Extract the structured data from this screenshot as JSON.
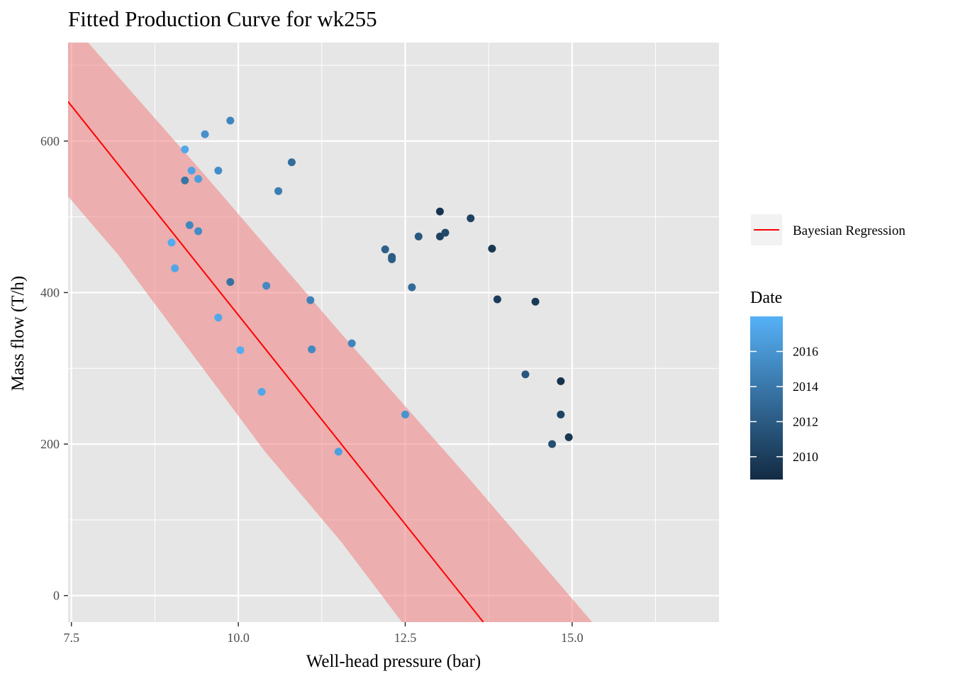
{
  "chart_data": {
    "type": "scatter",
    "title": "Fitted Production Curve for wk255",
    "xlabel": "Well-head pressure (bar)",
    "ylabel": "Mass flow (T/h)",
    "xlim": [
      7.45,
      17.2
    ],
    "ylim": [
      -35,
      730
    ],
    "x_ticks": [
      7.5,
      10.0,
      12.5,
      15.0
    ],
    "x_tick_labels": [
      "7.5",
      "10.0",
      "12.5",
      "15.0"
    ],
    "x_minor_ticks": [
      8.75,
      11.25,
      13.75,
      16.25
    ],
    "y_ticks": [
      0,
      200,
      400,
      600
    ],
    "y_tick_labels": [
      "0",
      "200",
      "400",
      "600"
    ],
    "y_minor_ticks": [
      100,
      300,
      500,
      700
    ],
    "grid": true,
    "panel_background": "#e6e6e6",
    "fit_line": {
      "name": "Bayesian Regression",
      "color": "#ff0000",
      "points": [
        [
          7.45,
          652
        ],
        [
          13.67,
          -35
        ]
      ]
    },
    "credible_band": {
      "color": "#f08080",
      "opacity": 0.55,
      "upper": [
        [
          7.45,
          730
        ],
        [
          7.75,
          730
        ],
        [
          9.5,
          555
        ],
        [
          11.5,
          350
        ],
        [
          13.5,
          150
        ],
        [
          15.3,
          -35
        ]
      ],
      "lower": [
        [
          7.45,
          527
        ],
        [
          8.2,
          450
        ],
        [
          10.4,
          190
        ],
        [
          11.55,
          70
        ],
        [
          12.45,
          -35
        ]
      ]
    },
    "legend": {
      "position": "right",
      "line_label": "Bayesian Regression",
      "color_title": "Date",
      "color_ticks": [
        2010,
        2012,
        2014,
        2016
      ],
      "color_tick_labels": [
        "2010",
        "2012",
        "2014",
        "2016"
      ],
      "color_range": [
        2008.7,
        2018.0
      ],
      "low_color": "#132b43",
      "high_color": "#56b1f7"
    },
    "points": [
      {
        "x": 9.2,
        "y": 589,
        "date": 2017.3
      },
      {
        "x": 9.5,
        "y": 609,
        "date": 2015.8
      },
      {
        "x": 9.88,
        "y": 627,
        "date": 2015.0
      },
      {
        "x": 9.3,
        "y": 561,
        "date": 2016.9
      },
      {
        "x": 9.4,
        "y": 550,
        "date": 2016.6
      },
      {
        "x": 9.7,
        "y": 561,
        "date": 2015.5
      },
      {
        "x": 9.2,
        "y": 548,
        "date": 2013.8
      },
      {
        "x": 10.8,
        "y": 572,
        "date": 2013.3
      },
      {
        "x": 10.6,
        "y": 534,
        "date": 2014.4
      },
      {
        "x": 9.27,
        "y": 489,
        "date": 2015.1
      },
      {
        "x": 9.4,
        "y": 481,
        "date": 2015.4
      },
      {
        "x": 9.0,
        "y": 466,
        "date": 2017.6
      },
      {
        "x": 9.05,
        "y": 432,
        "date": 2017.2
      },
      {
        "x": 9.88,
        "y": 414,
        "date": 2013.6
      },
      {
        "x": 10.42,
        "y": 409,
        "date": 2015.3
      },
      {
        "x": 11.08,
        "y": 390,
        "date": 2014.7
      },
      {
        "x": 9.7,
        "y": 367,
        "date": 2017.4
      },
      {
        "x": 10.03,
        "y": 324,
        "date": 2017.7
      },
      {
        "x": 11.1,
        "y": 325,
        "date": 2015.2
      },
      {
        "x": 11.7,
        "y": 333,
        "date": 2014.9
      },
      {
        "x": 10.35,
        "y": 269,
        "date": 2017.3
      },
      {
        "x": 12.5,
        "y": 239,
        "date": 2015.9
      },
      {
        "x": 11.5,
        "y": 190,
        "date": 2016.8
      },
      {
        "x": 12.2,
        "y": 457,
        "date": 2012.4
      },
      {
        "x": 12.3,
        "y": 447,
        "date": 2012.0
      },
      {
        "x": 12.3,
        "y": 444,
        "date": 2012.2
      },
      {
        "x": 12.7,
        "y": 474,
        "date": 2011.8
      },
      {
        "x": 12.6,
        "y": 407,
        "date": 2013.1
      },
      {
        "x": 13.02,
        "y": 507,
        "date": 2009.3
      },
      {
        "x": 13.02,
        "y": 474,
        "date": 2010.2
      },
      {
        "x": 13.1,
        "y": 479,
        "date": 2010.8
      },
      {
        "x": 13.48,
        "y": 498,
        "date": 2010.3
      },
      {
        "x": 13.8,
        "y": 458,
        "date": 2009.5
      },
      {
        "x": 13.88,
        "y": 391,
        "date": 2009.9
      },
      {
        "x": 14.45,
        "y": 388,
        "date": 2009.7
      },
      {
        "x": 14.3,
        "y": 292,
        "date": 2011.7
      },
      {
        "x": 14.83,
        "y": 283,
        "date": 2009.2
      },
      {
        "x": 14.83,
        "y": 239,
        "date": 2010.4
      },
      {
        "x": 14.7,
        "y": 200,
        "date": 2011.2
      },
      {
        "x": 14.95,
        "y": 209,
        "date": 2009.5
      }
    ]
  }
}
